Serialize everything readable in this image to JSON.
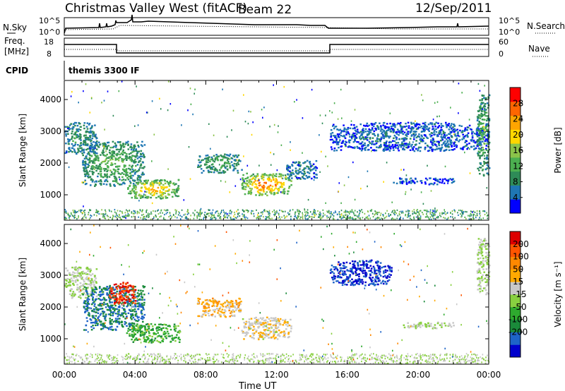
{
  "header": {
    "title": "Christmas Valley West (fitACF)",
    "beam": "Beam 22",
    "date": "12/Sep/2011"
  },
  "strip1": {
    "left_label": "N.Sky",
    "right_label": "N.Search",
    "left_ticks": [
      "10^5",
      "10^0"
    ],
    "right_ticks": [
      "10^5",
      "10^0"
    ]
  },
  "strip2": {
    "left_label_1": "Freq.",
    "left_label_2": "[MHz]",
    "right_label": "Nave",
    "left_ticks": [
      "18",
      "8"
    ],
    "right_ticks": [
      "60",
      "0"
    ]
  },
  "cpid": {
    "label": "CPID",
    "value": "themis 3300 IF"
  },
  "colors": {
    "power_scale": [
      "#0000ff",
      "#1f77b4",
      "#2e8b57",
      "#4caf50",
      "#8bc34a",
      "#ffd700",
      "#ffa500",
      "#ff6600",
      "#ff0000"
    ],
    "velocity_scale": [
      "#0000cc",
      "#1e64c8",
      "#1a8a3a",
      "#2eaa2e",
      "#88d040",
      "#c8c8c8",
      "#ffaa00",
      "#ff8800",
      "#ff5500",
      "#dd0000"
    ]
  },
  "chart_data": [
    {
      "type": "heatmap",
      "name": "power",
      "xlabel": "",
      "ylabel": "Slant Range [km]",
      "x_ticks": [
        "00:00",
        "04:00",
        "08:00",
        "12:00",
        "16:00",
        "20:00",
        "00:00"
      ],
      "y_ticks": [
        1000,
        2000,
        3000,
        4000
      ],
      "ylim": [
        200,
        4600
      ],
      "colorbar": {
        "label": "Power [dB]",
        "ticks": [
          4,
          8,
          12,
          16,
          20,
          24,
          28
        ],
        "range": [
          0,
          32
        ]
      },
      "regions": [
        {
          "t_start": 0.0,
          "t_end": 1.8,
          "r_min": 2300,
          "r_max": 3300,
          "value": 10
        },
        {
          "t_start": 1.0,
          "t_end": 4.5,
          "r_min": 1300,
          "r_max": 2700,
          "value": 14
        },
        {
          "t_start": 3.5,
          "t_end": 6.5,
          "r_min": 900,
          "r_max": 1500,
          "value": 24
        },
        {
          "t_start": 7.5,
          "t_end": 10.0,
          "r_min": 1700,
          "r_max": 2300,
          "value": 12
        },
        {
          "t_start": 10.0,
          "t_end": 12.8,
          "r_min": 1000,
          "r_max": 1700,
          "value": 28
        },
        {
          "t_start": 12.5,
          "t_end": 14.3,
          "r_min": 1500,
          "r_max": 2100,
          "value": 8
        },
        {
          "t_start": 15.0,
          "t_end": 24.0,
          "r_min": 2400,
          "r_max": 3300,
          "value": 6
        },
        {
          "t_start": 18.5,
          "t_end": 22.0,
          "r_min": 1350,
          "r_max": 1550,
          "value": 4
        },
        {
          "t_start": 23.3,
          "t_end": 24.0,
          "r_min": 1600,
          "r_max": 4200,
          "value": 14
        }
      ]
    },
    {
      "type": "heatmap",
      "name": "velocity",
      "xlabel": "Time UT",
      "ylabel": "Slant Range [km]",
      "x_ticks": [
        "00:00",
        "04:00",
        "08:00",
        "12:00",
        "16:00",
        "20:00",
        "00:00"
      ],
      "y_ticks": [
        1000,
        2000,
        3000,
        4000
      ],
      "ylim": [
        200,
        4600
      ],
      "colorbar": {
        "label": "Velocity [m s⁻¹]",
        "ticks": [
          200,
          100,
          50,
          15,
          -15,
          -50,
          -100,
          -200
        ],
        "range": [
          -250,
          250
        ]
      },
      "regions": [
        {
          "t_start": 0.0,
          "t_end": 1.8,
          "r_min": 2300,
          "r_max": 3300,
          "value": 0
        },
        {
          "t_start": 1.0,
          "t_end": 4.5,
          "r_min": 1300,
          "r_max": 2700,
          "value": -150
        },
        {
          "t_start": 2.5,
          "t_end": 4.0,
          "r_min": 2100,
          "r_max": 2800,
          "value": 200
        },
        {
          "t_start": 3.5,
          "t_end": 6.5,
          "r_min": 900,
          "r_max": 1500,
          "value": -75
        },
        {
          "t_start": 7.5,
          "t_end": 10.0,
          "r_min": 1700,
          "r_max": 2300,
          "value": 75
        },
        {
          "t_start": 10.0,
          "t_end": 12.8,
          "r_min": 1000,
          "r_max": 1700,
          "value": 40
        },
        {
          "t_start": 15.0,
          "t_end": 18.5,
          "r_min": 2700,
          "r_max": 3500,
          "value": -200
        },
        {
          "t_start": 19.0,
          "t_end": 22.0,
          "r_min": 1350,
          "r_max": 1550,
          "value": 0
        },
        {
          "t_start": 23.3,
          "t_end": 24.0,
          "r_min": 2400,
          "r_max": 4200,
          "value": 0
        }
      ]
    }
  ]
}
